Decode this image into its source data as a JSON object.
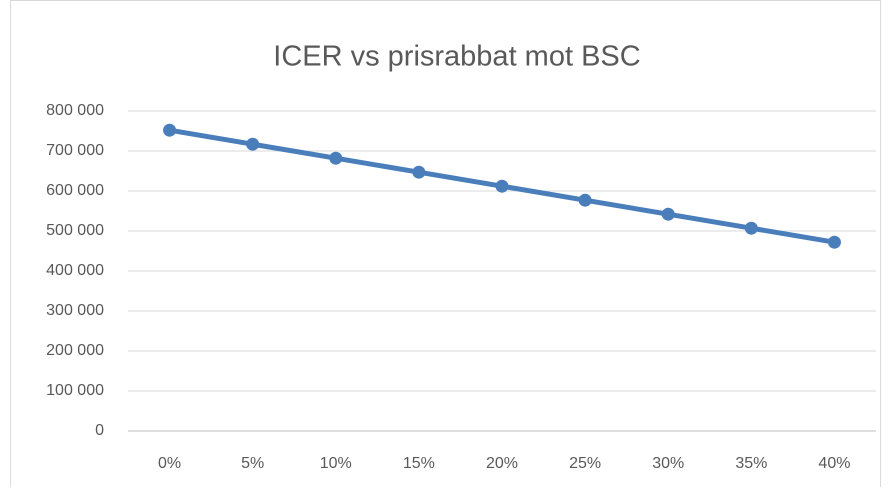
{
  "chart_data": {
    "type": "line",
    "title": "ICER vs prisrabbat mot BSC",
    "categories": [
      "0%",
      "5%",
      "10%",
      "15%",
      "20%",
      "25%",
      "30%",
      "35%",
      "40%"
    ],
    "series": [
      {
        "name": "ICER",
        "color": "#4a7ebb",
        "values": [
          752000,
          717000,
          682000,
          647000,
          612000,
          577000,
          542000,
          507000,
          472000
        ]
      }
    ],
    "ylim": [
      0,
      800000
    ],
    "yticks": [
      0,
      {
        "value": 100000,
        "label": "100 000"
      },
      {
        "value": 200000,
        "label": "200 000"
      },
      {
        "value": 300000,
        "label": "300 000"
      },
      {
        "value": 400000,
        "label": "400 000"
      },
      {
        "value": 500000,
        "label": "500 000"
      },
      {
        "value": 600000,
        "label": "600 000"
      },
      {
        "value": 700000,
        "label": "700 000"
      },
      {
        "value": 800000,
        "label": "800 000"
      }
    ],
    "grid": true
  }
}
